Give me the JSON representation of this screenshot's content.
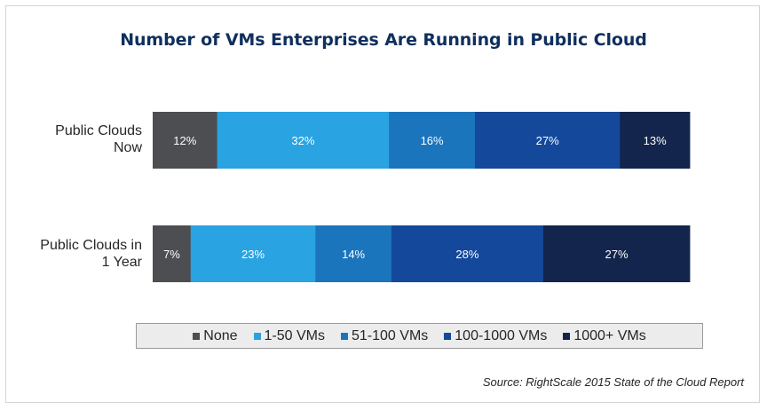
{
  "chart_data": {
    "type": "bar",
    "orientation": "horizontal",
    "stacked": true,
    "title": "Number of VMs Enterprises Are Running in Public Cloud",
    "categories": [
      "Public Clouds Now",
      "Public Clouds in 1 Year"
    ],
    "category_label_lines": [
      [
        "Public Clouds",
        "Now"
      ],
      [
        "Public Clouds in",
        "1 Year"
      ]
    ],
    "series": [
      {
        "name": "None",
        "values": [
          12,
          7
        ],
        "labels": [
          "12%",
          "7%"
        ],
        "color": "#4d4e52"
      },
      {
        "name": "1-50 VMs",
        "values": [
          32,
          23
        ],
        "labels": [
          "32%",
          "23%"
        ],
        "color": "#29a3e2"
      },
      {
        "name": "51-100 VMs",
        "values": [
          16,
          14
        ],
        "labels": [
          "16%",
          "14%"
        ],
        "color": "#1b75bd"
      },
      {
        "name": "100-1000 VMs",
        "values": [
          27,
          28
        ],
        "labels": [
          "27%",
          "28%"
        ],
        "color": "#14489a"
      },
      {
        "name": "1000+ VMs",
        "values": [
          13,
          27
        ],
        "labels": [
          "13%",
          "27%"
        ],
        "color": "#13254c"
      }
    ],
    "xlim": [
      0,
      100
    ],
    "xlabel": "",
    "ylabel": "",
    "grid": false,
    "legend_position": "bottom",
    "source": "Source: RightScale 2015 State of the Cloud Report"
  }
}
